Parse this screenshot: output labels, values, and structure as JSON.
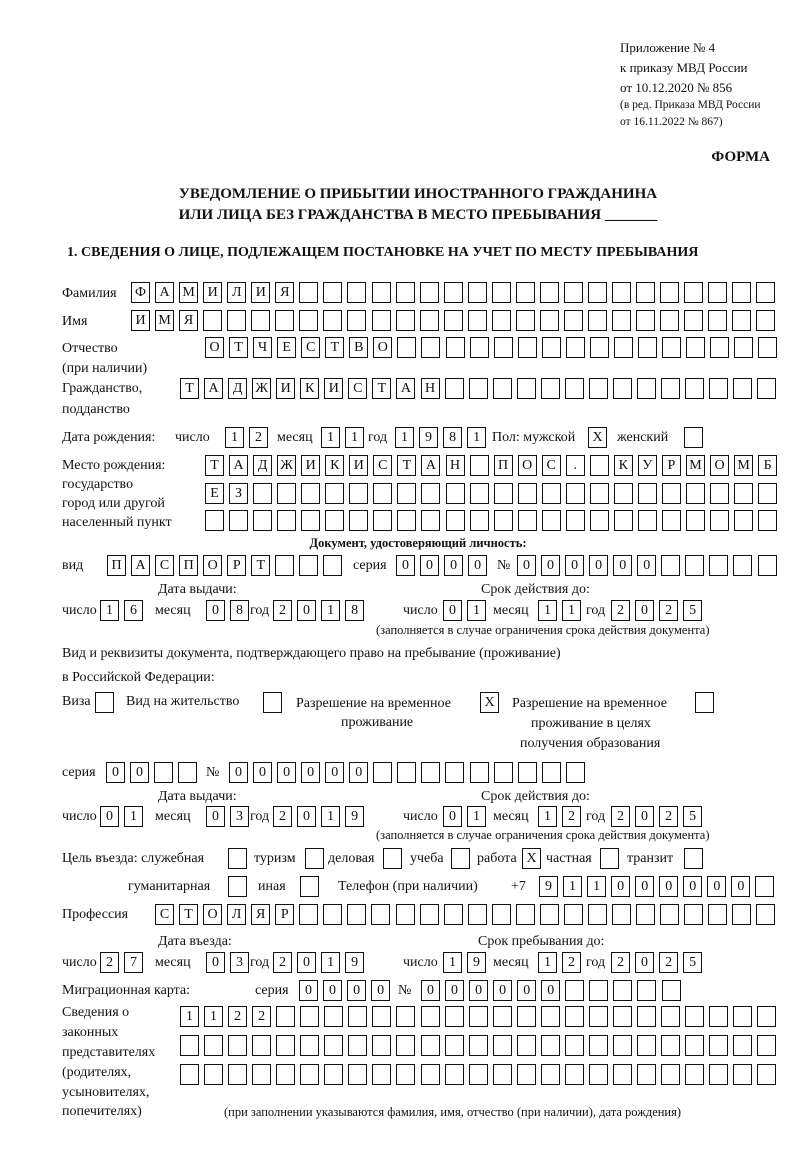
{
  "header": {
    "appendix": "Приложение № 4",
    "order": "к приказу МВД России",
    "order_date": "от 10.12.2020 № 856",
    "edit1": "(в ред. Приказа МВД России",
    "edit2": "от 16.11.2022 № 867)",
    "form": "ФОРМА",
    "title1": "УВЕДОМЛЕНИЕ О ПРИБЫТИИ ИНОСТРАННОГО ГРАЖДАНИНА",
    "title2": "ИЛИ ЛИЦА БЕЗ ГРАЖДАНСТВА В МЕСТО ПРЕБЫВАНИЯ _______",
    "section1": "1. СВЕДЕНИЯ О ЛИЦЕ, ПОДЛЕЖАЩЕМ ПОСТАНОВКЕ НА УЧЕТ ПО МЕСТУ ПРЕБЫВАНИЯ"
  },
  "labels": {
    "surname": "Фамилия",
    "name": "Имя",
    "patronymic": "Отчество",
    "patronymic2": "(при наличии)",
    "citizenship": "Гражданство,",
    "citizenship2": "подданство",
    "birth_date": "Дата рождения:",
    "day": "число",
    "month": "месяц",
    "year": "год",
    "sex": "Пол: мужской",
    "female": "женский",
    "birthplace1": "Место рождения:",
    "birthplace2": "государство",
    "birthplace3": "город или другой",
    "birthplace4": "населенный пункт",
    "id_doc": "Документ, удостоверяющий личность:",
    "kind": "вид",
    "series": "серия",
    "number": "№",
    "issue_date": "Дата выдачи:",
    "valid_until": "Срок действия до:",
    "validity_note": "(заполняется в случае ограничения срока действия документа)",
    "right_doc1": "Вид и реквизиты документа, подтверждающего право на пребывание (проживание)",
    "right_doc2": "в Российской Федерации:",
    "visa": "Виза",
    "residence": "Вид на жительство",
    "temp_permit1": "Разрешение на временное",
    "temp_permit2": "проживание",
    "edu_permit1": "Разрешение на временное",
    "edu_permit2": "проживание в целях",
    "edu_permit3": "получения образования",
    "purpose": "Цель въезда: служебная",
    "tourism": "туризм",
    "business": "деловая",
    "study": "учеба",
    "work": "работа",
    "private": "частная",
    "transit": "транзит",
    "humanitarian": "гуманитарная",
    "other": "иная",
    "phone": "Телефон (при наличии)",
    "phone_prefix": "+7",
    "profession": "Профессия",
    "entry_date": "Дата въезда:",
    "stay_until": "Срок пребывания до:",
    "migration_card": "Миграционная карта:",
    "rep1": "Сведения о",
    "rep2": "законных",
    "rep3": "представителях",
    "rep4": "(родителях,",
    "rep5": "усыновителях,",
    "rep6": "попечителях)",
    "rep_note": "(при заполнении указываются фамилия, имя, отчество (при наличии), дата рождения)"
  },
  "person": {
    "surname": "ФАМИЛИЯ",
    "name": "ИМЯ",
    "patronymic": "ОТЧЕСТВО",
    "citizenship": "ТАДЖИКИСТАН",
    "birth_day": "12",
    "birth_month": "11",
    "birth_year": "1981",
    "sex_male": "X",
    "sex_female": "",
    "birthplace": [
      "ТАДЖИКИСТАН ПОС. КУРМОМБ",
      "ЕЗ",
      ""
    ]
  },
  "id_document": {
    "kind": "ПАСПОРТ",
    "series": "0000",
    "number": "000000",
    "issue_day": "16",
    "issue_month": "08",
    "issue_year": "2018",
    "valid_day": "01",
    "valid_month": "11",
    "valid_year": "2025"
  },
  "right_document": {
    "visa": "",
    "residence": "",
    "temp_permit": "X",
    "edu_permit": "",
    "series": "00",
    "number": "000000",
    "issue_day": "01",
    "issue_month": "03",
    "issue_year": "2019",
    "valid_day": "01",
    "valid_month": "12",
    "valid_year": "2025"
  },
  "purpose": {
    "official": "",
    "tourism": "",
    "business": "",
    "study": "",
    "work": "X",
    "private": "",
    "transit": "",
    "humanitarian": "",
    "other": ""
  },
  "phone": "911000000",
  "profession": "СТОЛЯР",
  "entry": {
    "day": "27",
    "month": "03",
    "year": "2019"
  },
  "stay_until": {
    "day": "19",
    "month": "12",
    "year": "2025"
  },
  "migration_card": {
    "series": "0000",
    "number": "000000"
  },
  "representatives": [
    "1122",
    "",
    ""
  ]
}
